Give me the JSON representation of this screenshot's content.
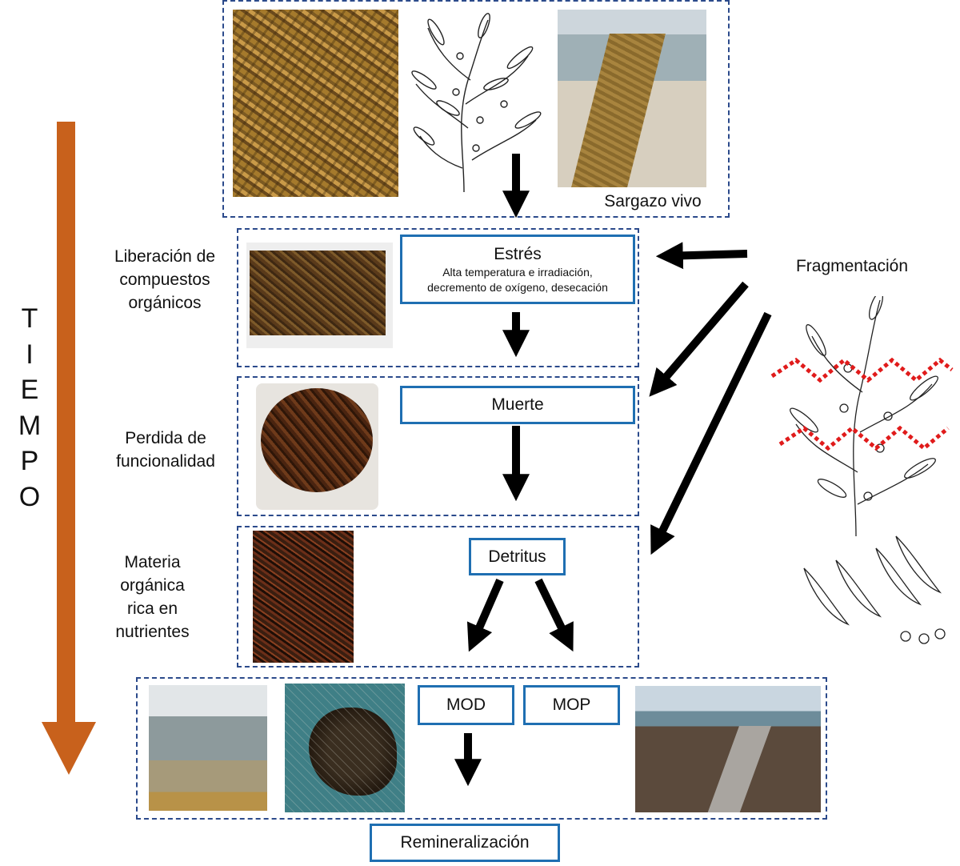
{
  "time_axis": {
    "label_letters": [
      "T",
      "I",
      "E",
      "M",
      "P",
      "O"
    ],
    "arrow_color": "#c8611c"
  },
  "colors": {
    "box_border": "#1f6fb2",
    "dashed_border": "#2b4a8b",
    "frag_cut": "#e01b1b"
  },
  "top_panel": {
    "caption": "Sargazo vivo"
  },
  "stages": {
    "stress": {
      "title": "Estrés",
      "detail_line1": "Alta temperatura e irradiación,",
      "detail_line2": "decremento de oxígeno, desecación",
      "side_label_line1": "Liberación de",
      "side_label_line2": "compuestos",
      "side_label_line3": "orgánicos"
    },
    "death": {
      "title": "Muerte",
      "side_label_line1": "Perdida de",
      "side_label_line2": "funcionalidad"
    },
    "detritus": {
      "title": "Detritus",
      "side_label_line1": "Materia",
      "side_label_line2": "orgánica",
      "side_label_line3": "rica en",
      "side_label_line4": "nutrientes"
    }
  },
  "products": {
    "mod": "MOD",
    "mop": "MOP"
  },
  "final": {
    "title": "Remineralización"
  },
  "fragmentation": {
    "label": "Fragmentación"
  }
}
